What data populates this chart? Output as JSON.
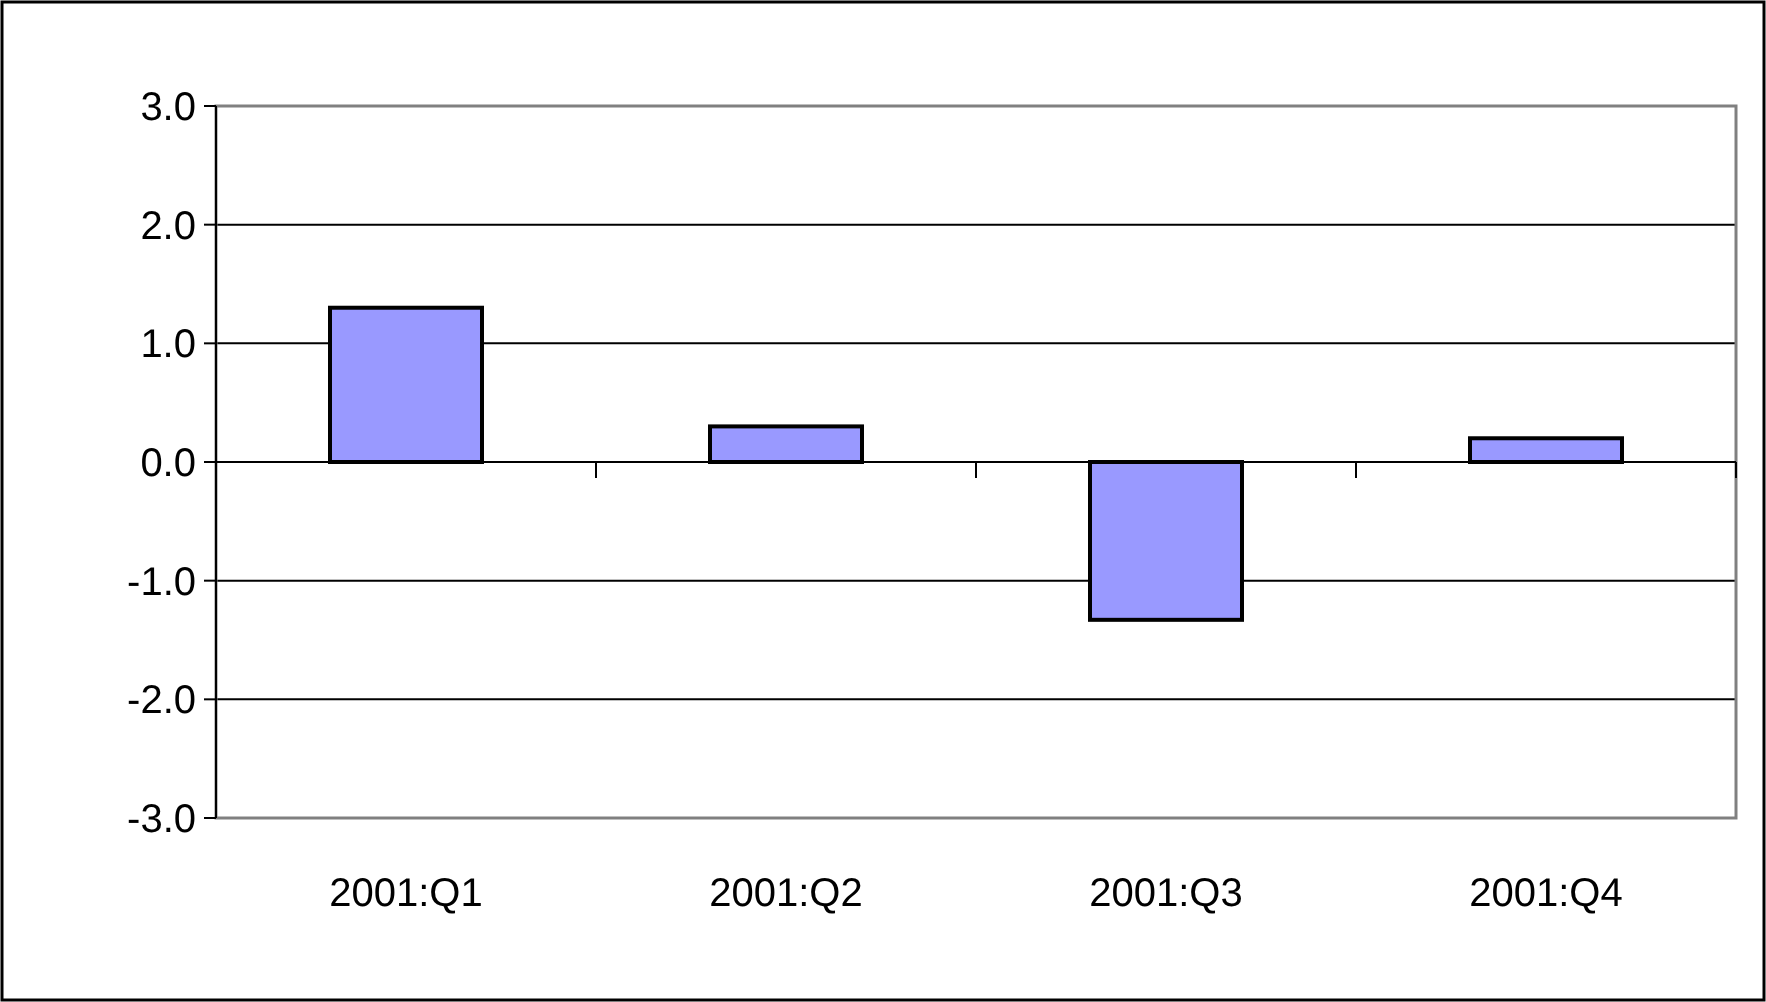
{
  "chart_data": {
    "type": "bar",
    "categories": [
      "2001:Q1",
      "2001:Q2",
      "2001:Q3",
      "2001:Q4"
    ],
    "values": [
      1.3,
      0.3,
      -1.33,
      0.2
    ],
    "color": "#9999ff",
    "ylim": [
      -3,
      3
    ],
    "yticks": [
      {
        "value": -3,
        "label": "-3.0"
      },
      {
        "value": -2,
        "label": "-2.0"
      },
      {
        "value": -1,
        "label": "-1.0"
      },
      {
        "value": 0,
        "label": "0.0"
      },
      {
        "value": 1,
        "label": "1.0"
      },
      {
        "value": 2,
        "label": "2.0"
      },
      {
        "value": 3,
        "label": "3.0"
      }
    ],
    "grid": "y"
  }
}
